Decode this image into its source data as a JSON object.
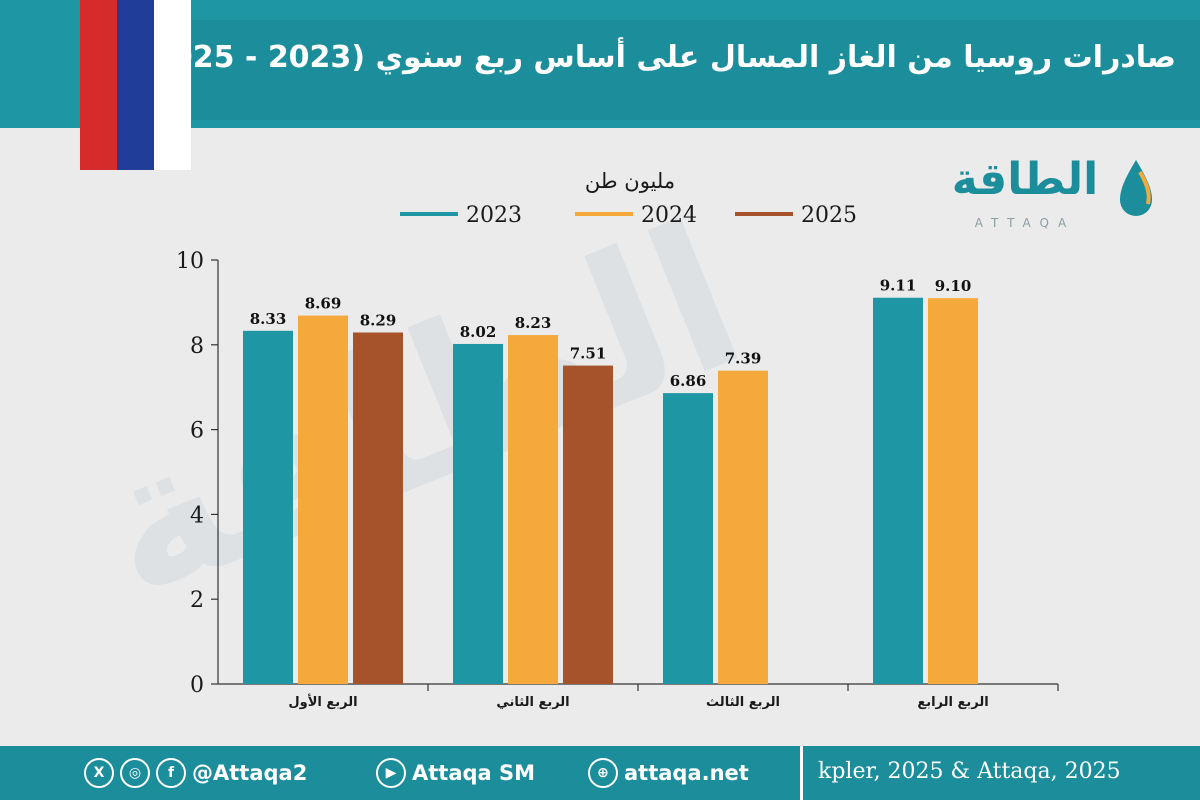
{
  "header": {
    "title": "صادرات روسيا من الغاز المسال على أساس ربع سنوي (2023 - 2025)"
  },
  "flag": {
    "colors": [
      "#d62b2b",
      "#1f3d99",
      "#ffffff"
    ]
  },
  "logo": {
    "name": "الطاقة",
    "latin": "ATTAQA"
  },
  "colors": {
    "accent": "#1c8d9b",
    "series_2023": "#1f96a4",
    "series_2024": "#f6a93b",
    "series_2025": "#a6522a"
  },
  "chart_data": {
    "type": "bar",
    "unit_label": "مليون طن",
    "categories": [
      "الربع الأول",
      "الربع الثاني",
      "الربع الثالث",
      "الربع الرابع"
    ],
    "series": [
      {
        "name": "2023",
        "color": "#1f96a4",
        "values": [
          8.33,
          8.02,
          6.86,
          9.11
        ]
      },
      {
        "name": "2024",
        "color": "#f6a93b",
        "values": [
          8.69,
          8.23,
          7.39,
          9.1
        ]
      },
      {
        "name": "2025",
        "color": "#a6522a",
        "values": [
          8.29,
          7.51,
          null,
          null
        ]
      }
    ],
    "data_labels": [
      [
        "8.33",
        "8.02",
        "6.86",
        "9.11"
      ],
      [
        "8.69",
        "8.23",
        "7.39",
        "9.10"
      ],
      [
        "8.29",
        "7.51",
        "",
        ""
      ]
    ],
    "ylim": [
      0,
      10
    ],
    "yticks": [
      "0",
      "2",
      "4",
      "6",
      "8",
      "10"
    ],
    "legend_position": "top-center",
    "grid": false
  },
  "footer": {
    "twitter_icon": "x-icon",
    "instagram_icon": "instagram-icon",
    "facebook_icon": "facebook-icon",
    "handle": "@Attaqa2",
    "youtube_icon": "youtube-icon",
    "youtube": "Attaqa SM",
    "web_icon": "globe-icon",
    "website": "attaqa.net",
    "source": "kpler, 2025 & Attaqa, 2025"
  }
}
